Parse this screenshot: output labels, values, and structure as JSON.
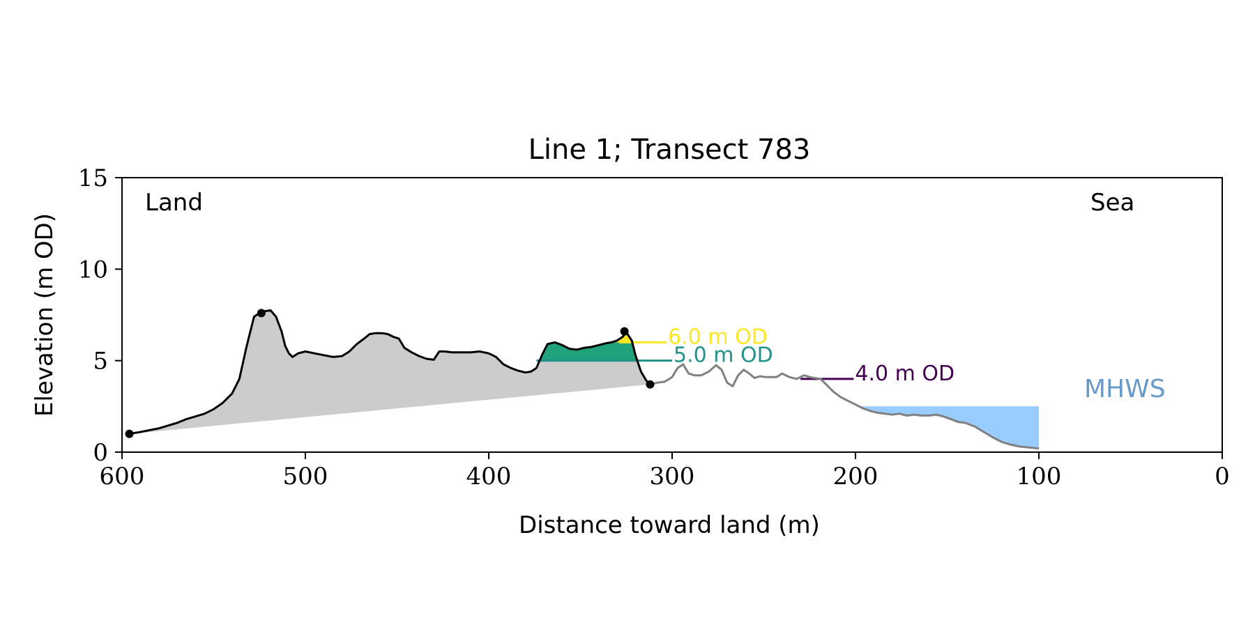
{
  "chart_data": {
    "type": "area",
    "title": "Line 1; Transect 783",
    "xlabel": "Distance toward land (m)",
    "ylabel": "Elevation (m OD)",
    "xlim": [
      600,
      0
    ],
    "ylim": [
      0,
      15
    ],
    "x_ticks": [
      600,
      500,
      400,
      300,
      200,
      100,
      0
    ],
    "y_ticks": [
      0,
      5,
      10,
      15
    ],
    "x_tick_labels": [
      "600",
      "500",
      "400",
      "300",
      "200",
      "100",
      "0"
    ],
    "y_tick_labels": [
      "0",
      "5",
      "10",
      "15"
    ],
    "grid": false,
    "annotations": {
      "land": "Land",
      "sea": "Sea",
      "mhws": "MHWS",
      "level_6": "6.0 m OD",
      "level_5": "5.0 m OD",
      "level_4": "4.0 m OD"
    },
    "colors": {
      "dune_fill": "#cccccc",
      "dune_line": "#000000",
      "beach_line": "#808080",
      "level_6": "#fde725",
      "level_5": "#21918c",
      "level_5_fill": "#20a37c",
      "level_4": "#440154",
      "mhws": "#99ccff",
      "mhws_text": "#6699cc"
    },
    "dune_profile": {
      "x": [
        596,
        590,
        585,
        580,
        575,
        570,
        565,
        560,
        555,
        550,
        545,
        540,
        536,
        532,
        528,
        525,
        522,
        519,
        516,
        513,
        511,
        509,
        507,
        504,
        500,
        495,
        490,
        485,
        480,
        476,
        472,
        468,
        465,
        462,
        458,
        455,
        452,
        449,
        446,
        442,
        438,
        434,
        430,
        427,
        424,
        420,
        415,
        410,
        405,
        400,
        396,
        392,
        388,
        384,
        380,
        377,
        374,
        371,
        368,
        364,
        360,
        356,
        352,
        348,
        344,
        340,
        336,
        333,
        330,
        327,
        325,
        322,
        320,
        317,
        314,
        312
      ],
      "y": [
        1.0,
        1.1,
        1.2,
        1.3,
        1.45,
        1.6,
        1.8,
        1.95,
        2.1,
        2.35,
        2.7,
        3.2,
        4.0,
        5.8,
        7.4,
        7.6,
        7.7,
        7.75,
        7.4,
        6.6,
        5.8,
        5.4,
        5.2,
        5.4,
        5.5,
        5.4,
        5.3,
        5.2,
        5.25,
        5.5,
        5.9,
        6.2,
        6.45,
        6.5,
        6.5,
        6.45,
        6.3,
        6.2,
        5.7,
        5.45,
        5.25,
        5.1,
        5.05,
        5.5,
        5.5,
        5.45,
        5.45,
        5.45,
        5.5,
        5.4,
        5.2,
        4.8,
        4.6,
        4.45,
        4.35,
        4.4,
        4.6,
        5.3,
        5.9,
        6.0,
        5.85,
        5.65,
        5.6,
        5.7,
        5.75,
        5.85,
        5.95,
        6.0,
        6.1,
        6.3,
        6.55,
        6.1,
        5.3,
        4.4,
        3.9,
        3.7
      ]
    },
    "dune_markers": [
      {
        "x": 596,
        "y": 1.0
      },
      {
        "x": 524,
        "y": 7.6
      },
      {
        "x": 326,
        "y": 6.6
      },
      {
        "x": 312,
        "y": 3.7
      }
    ],
    "beach_profile": {
      "x": [
        312,
        308,
        304,
        300,
        297,
        294,
        291,
        288,
        284,
        280,
        276,
        273,
        270,
        267,
        264,
        261,
        258,
        255,
        252,
        249,
        246,
        243,
        240,
        236,
        232,
        228,
        225,
        222,
        219,
        215,
        212,
        208,
        204,
        200,
        196,
        192,
        188,
        184,
        180,
        176,
        172,
        168,
        164,
        160,
        156,
        152,
        148,
        144,
        140,
        135,
        130,
        125,
        120,
        115,
        110,
        105,
        100
      ],
      "y": [
        3.7,
        3.8,
        3.85,
        4.1,
        4.6,
        4.8,
        4.3,
        4.2,
        4.2,
        4.4,
        4.75,
        4.5,
        3.8,
        3.6,
        4.2,
        4.5,
        4.3,
        4.05,
        4.15,
        4.1,
        4.1,
        4.1,
        4.3,
        4.1,
        4.0,
        4.2,
        4.1,
        4.05,
        4.0,
        3.6,
        3.3,
        3.0,
        2.8,
        2.6,
        2.4,
        2.25,
        2.15,
        2.1,
        2.05,
        2.1,
        2.0,
        2.05,
        2.0,
        2.0,
        2.05,
        1.95,
        1.8,
        1.65,
        1.6,
        1.4,
        1.1,
        0.8,
        0.55,
        0.4,
        0.3,
        0.25,
        0.2
      ]
    },
    "levels": [
      {
        "label": "6.0 m OD",
        "elevation": 6.0,
        "x_from": 329,
        "x_to": 303
      },
      {
        "label": "5.0 m OD",
        "elevation": 5.0,
        "x_from": 374,
        "x_to": 300
      },
      {
        "label": "4.0 m OD",
        "elevation": 4.0,
        "x_from": 230,
        "x_to": 201
      }
    ],
    "mhws": {
      "elevation": 2.5,
      "x_from": 200,
      "x_to": 100
    }
  }
}
